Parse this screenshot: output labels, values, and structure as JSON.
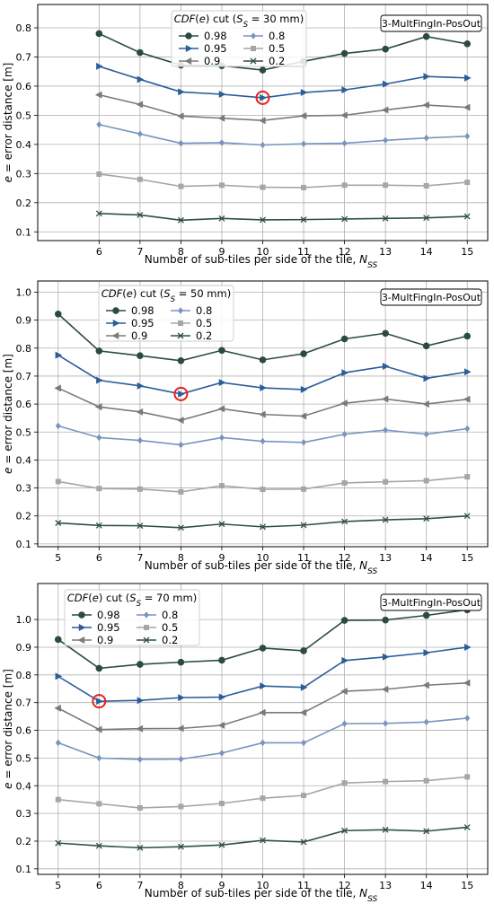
{
  "colors": {
    "0.98": "#2c4a45",
    "0.95": "#2b5d99",
    "0.9": "#7a7a7a",
    "0.8": "#7994be",
    "0.5": "#a6a6a6",
    "0.2": "#2e4f4a",
    "highlight": "#e8201c"
  },
  "chart_data": [
    {
      "type": "line",
      "xlabel": "Number of sub-tiles per side of the tile, N_SS",
      "ylabel": "e = error distance [m]",
      "legend_title": "CDF(e) cut (S_S = 30 mm)",
      "annotation": "3-MultFingIn-PosOut",
      "legend_placement": "top-center",
      "grid": true,
      "xlim": [
        4.5,
        15.5
      ],
      "ylim": [
        0.07,
        0.88
      ],
      "xticks": [
        6,
        7,
        8,
        9,
        10,
        11,
        12,
        13,
        14,
        15
      ],
      "yticks": [
        0.1,
        0.2,
        0.3,
        0.4,
        0.5,
        0.6,
        0.7,
        0.8
      ],
      "x": [
        6,
        7,
        8,
        9,
        10,
        11,
        12,
        13,
        14,
        15
      ],
      "highlight": {
        "x": 10,
        "y": 0.56
      },
      "series": [
        {
          "name": "0.98",
          "marker": "circle",
          "values": [
            0.78,
            0.715,
            0.672,
            0.67,
            0.655,
            0.685,
            0.712,
            0.727,
            0.77,
            0.745
          ]
        },
        {
          "name": "0.95",
          "marker": "triangle-right",
          "values": [
            0.668,
            0.623,
            0.58,
            0.572,
            0.56,
            0.578,
            0.587,
            0.607,
            0.633,
            0.628
          ]
        },
        {
          "name": "0.9",
          "marker": "triangle-left",
          "values": [
            0.57,
            0.537,
            0.497,
            0.49,
            0.482,
            0.498,
            0.5,
            0.518,
            0.535,
            0.527
          ]
        },
        {
          "name": "0.8",
          "marker": "diamond",
          "values": [
            0.468,
            0.436,
            0.404,
            0.406,
            0.398,
            0.402,
            0.404,
            0.414,
            0.422,
            0.428
          ]
        },
        {
          "name": "0.5",
          "marker": "square",
          "values": [
            0.298,
            0.28,
            0.256,
            0.26,
            0.253,
            0.252,
            0.26,
            0.26,
            0.258,
            0.27
          ]
        },
        {
          "name": "0.2",
          "marker": "x",
          "values": [
            0.163,
            0.158,
            0.14,
            0.146,
            0.141,
            0.142,
            0.144,
            0.146,
            0.148,
            0.153
          ]
        }
      ]
    },
    {
      "type": "line",
      "xlabel": "Number of sub-tiles per side of the tile, N_SS",
      "ylabel": "e = error distance [m]",
      "legend_title": "CDF(e) cut (S_S = 50 mm)",
      "annotation": "3-MultFingIn-PosOut",
      "legend_placement": "top-left",
      "grid": true,
      "xlim": [
        4.5,
        15.5
      ],
      "ylim": [
        0.09,
        1.04
      ],
      "xticks": [
        5,
        6,
        7,
        8,
        9,
        10,
        11,
        12,
        13,
        14,
        15
      ],
      "yticks": [
        0.1,
        0.2,
        0.3,
        0.4,
        0.5,
        0.6,
        0.7,
        0.8,
        0.9,
        1.0
      ],
      "x": [
        5,
        6,
        7,
        8,
        9,
        10,
        11,
        12,
        13,
        14,
        15
      ],
      "highlight": {
        "x": 8,
        "y": 0.636
      },
      "series": [
        {
          "name": "0.98",
          "marker": "circle",
          "values": [
            0.922,
            0.79,
            0.773,
            0.755,
            0.792,
            0.758,
            0.78,
            0.833,
            0.853,
            0.808,
            0.843
          ]
        },
        {
          "name": "0.95",
          "marker": "triangle-right",
          "values": [
            0.775,
            0.685,
            0.665,
            0.636,
            0.677,
            0.658,
            0.652,
            0.712,
            0.735,
            0.692,
            0.715
          ]
        },
        {
          "name": "0.9",
          "marker": "triangle-left",
          "values": [
            0.657,
            0.59,
            0.572,
            0.542,
            0.583,
            0.563,
            0.557,
            0.603,
            0.618,
            0.6,
            0.617
          ]
        },
        {
          "name": "0.8",
          "marker": "diamond",
          "values": [
            0.522,
            0.48,
            0.47,
            0.454,
            0.48,
            0.467,
            0.463,
            0.492,
            0.507,
            0.492,
            0.512
          ]
        },
        {
          "name": "0.5",
          "marker": "square",
          "values": [
            0.323,
            0.298,
            0.296,
            0.286,
            0.308,
            0.295,
            0.296,
            0.318,
            0.322,
            0.326,
            0.34
          ]
        },
        {
          "name": "0.2",
          "marker": "x",
          "values": [
            0.175,
            0.166,
            0.165,
            0.158,
            0.171,
            0.161,
            0.167,
            0.18,
            0.186,
            0.19,
            0.2
          ]
        }
      ]
    },
    {
      "type": "line",
      "xlabel": "Number of sub-tiles per side of the tile, N_SS",
      "ylabel": "e = error distance [m]",
      "legend_title": "CDF(e) cut (S_S = 70 mm)",
      "annotation": "3-MultFingIn-PosOut",
      "legend_placement": "top-left",
      "grid": true,
      "xlim": [
        4.5,
        15.5
      ],
      "ylim": [
        0.08,
        1.13
      ],
      "xticks": [
        5,
        6,
        7,
        8,
        9,
        10,
        11,
        12,
        13,
        14,
        15
      ],
      "yticks": [
        0.1,
        0.2,
        0.3,
        0.4,
        0.5,
        0.6,
        0.7,
        0.8,
        0.9,
        1.0
      ],
      "x": [
        5,
        6,
        7,
        8,
        9,
        10,
        11,
        12,
        13,
        14,
        15
      ],
      "highlight": {
        "x": 6,
        "y": 0.705
      },
      "series": [
        {
          "name": "0.98",
          "marker": "circle",
          "values": [
            0.928,
            0.824,
            0.838,
            0.846,
            0.853,
            0.897,
            0.887,
            0.997,
            0.998,
            1.015,
            1.035
          ]
        },
        {
          "name": "0.95",
          "marker": "triangle-right",
          "values": [
            0.795,
            0.705,
            0.708,
            0.718,
            0.72,
            0.76,
            0.755,
            0.852,
            0.865,
            0.88,
            0.9
          ]
        },
        {
          "name": "0.9",
          "marker": "triangle-left",
          "values": [
            0.68,
            0.603,
            0.606,
            0.607,
            0.618,
            0.664,
            0.664,
            0.741,
            0.748,
            0.763,
            0.771
          ]
        },
        {
          "name": "0.8",
          "marker": "diamond",
          "values": [
            0.555,
            0.5,
            0.495,
            0.496,
            0.518,
            0.555,
            0.555,
            0.624,
            0.625,
            0.63,
            0.644
          ]
        },
        {
          "name": "0.5",
          "marker": "square",
          "values": [
            0.35,
            0.335,
            0.32,
            0.325,
            0.336,
            0.355,
            0.365,
            0.41,
            0.415,
            0.418,
            0.432
          ]
        },
        {
          "name": "0.2",
          "marker": "x",
          "values": [
            0.193,
            0.183,
            0.176,
            0.18,
            0.186,
            0.203,
            0.197,
            0.238,
            0.241,
            0.236,
            0.25
          ]
        }
      ]
    }
  ]
}
